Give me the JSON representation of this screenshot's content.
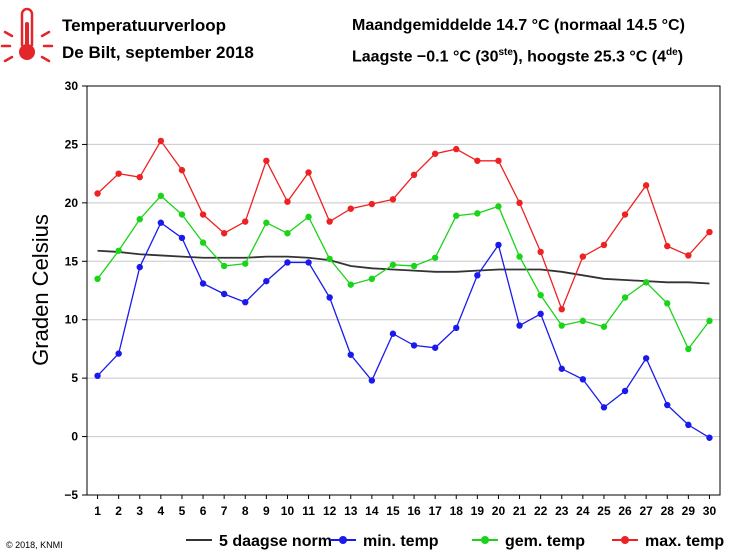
{
  "header": {
    "title": "Temperatuurverloop",
    "subtitle": "De Bilt, september 2018",
    "line1": "Maandgemiddelde 14.7 °C (normaal 14.5 °C)",
    "line2_a": "Laagste −0.1 °C (30",
    "line2_sup1": "ste",
    "line2_b": "), hoogste 25.3 °C (4",
    "line2_sup2": "de",
    "line2_c": ")"
  },
  "icon": "thermometer-icon",
  "copyright": "© 2018, KNMI",
  "chart_data": {
    "type": "line",
    "title": "",
    "xlabel": "",
    "ylabel": "Graden Celsius",
    "xlim": [
      0.5,
      30.5
    ],
    "ylim": [
      -5,
      30
    ],
    "yticks": [
      -5,
      0,
      5,
      10,
      15,
      20,
      25,
      30
    ],
    "x": [
      1,
      2,
      3,
      4,
      5,
      6,
      7,
      8,
      9,
      10,
      11,
      12,
      13,
      14,
      15,
      16,
      17,
      18,
      19,
      20,
      21,
      22,
      23,
      24,
      25,
      26,
      27,
      28,
      29,
      30
    ],
    "grid": true,
    "legend_position": "bottom",
    "series": [
      {
        "name": "5 daagse norm",
        "color": "#333333",
        "markers": false,
        "values": [
          15.9,
          15.8,
          15.6,
          15.5,
          15.4,
          15.3,
          15.3,
          15.3,
          15.4,
          15.4,
          15.3,
          15.1,
          14.6,
          14.4,
          14.3,
          14.2,
          14.1,
          14.1,
          14.2,
          14.3,
          14.3,
          14.3,
          14.1,
          13.8,
          13.5,
          13.4,
          13.3,
          13.2,
          13.2,
          13.1
        ]
      },
      {
        "name": "min. temp",
        "color": "#1a1aee",
        "markers": true,
        "values": [
          5.2,
          7.1,
          14.5,
          18.3,
          17.0,
          13.1,
          12.2,
          11.5,
          13.3,
          14.9,
          14.9,
          11.9,
          7.0,
          4.8,
          8.8,
          7.8,
          7.6,
          9.3,
          13.8,
          16.4,
          9.5,
          10.5,
          5.8,
          4.9,
          2.5,
          3.9,
          6.7,
          2.7,
          1.0,
          -0.1
        ]
      },
      {
        "name": "gem. temp",
        "color": "#1ad41a",
        "markers": true,
        "values": [
          13.5,
          15.9,
          18.6,
          20.6,
          19.0,
          16.6,
          14.6,
          14.8,
          18.3,
          17.4,
          18.8,
          15.2,
          13.0,
          13.5,
          14.7,
          14.6,
          15.3,
          18.9,
          19.1,
          19.7,
          15.4,
          12.1,
          9.5,
          9.9,
          9.4,
          11.9,
          13.2,
          11.4,
          7.5,
          9.9
        ]
      },
      {
        "name": "max. temp",
        "color": "#ee2222",
        "markers": true,
        "values": [
          20.8,
          22.5,
          22.2,
          25.3,
          22.8,
          19.0,
          17.4,
          18.4,
          23.6,
          20.1,
          22.6,
          18.4,
          19.5,
          19.9,
          20.3,
          22.4,
          24.2,
          24.6,
          23.6,
          23.6,
          20.0,
          15.8,
          10.9,
          15.4,
          16.4,
          19.0,
          21.5,
          16.3,
          15.5,
          17.5
        ]
      }
    ]
  }
}
